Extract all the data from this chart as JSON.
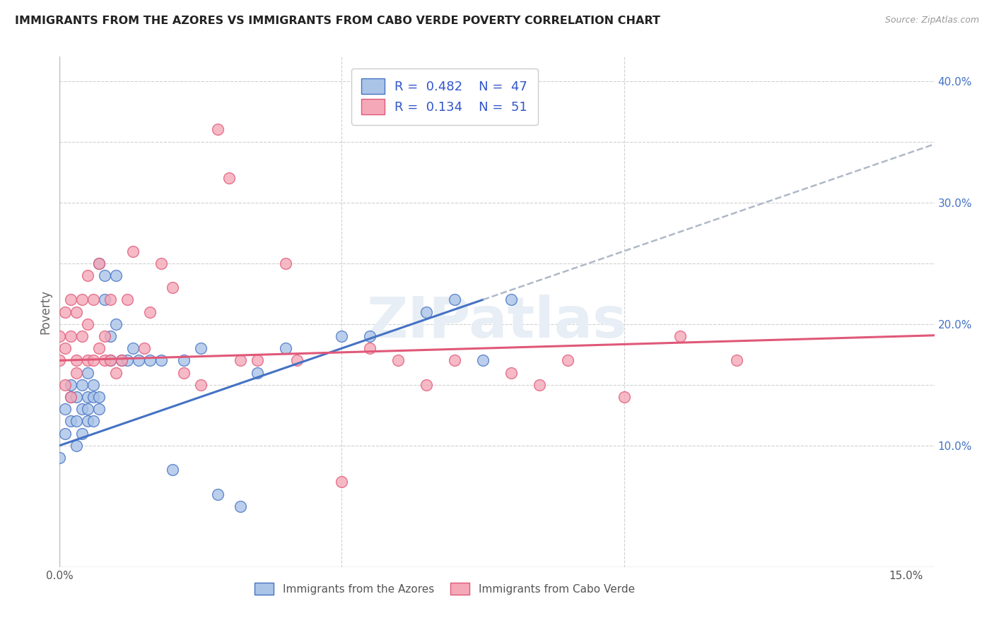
{
  "title": "IMMIGRANTS FROM THE AZORES VS IMMIGRANTS FROM CABO VERDE POVERTY CORRELATION CHART",
  "source": "Source: ZipAtlas.com",
  "ylabel": "Poverty",
  "xlim": [
    0.0,
    0.155
  ],
  "ylim": [
    0.0,
    0.42
  ],
  "legend_R_azores": "0.482",
  "legend_N_azores": "47",
  "legend_R_cabo": "0.134",
  "legend_N_cabo": "51",
  "color_azores": "#aac4e8",
  "color_cabo": "#f4a8b8",
  "line_color_azores": "#4472c4",
  "line_color_cabo": "#e05878",
  "line_dashed_color": "#b0b8c8",
  "watermark": "ZIPatlas",
  "background_color": "#ffffff",
  "grid_color": "#d0d0d0",
  "azores_x": [
    0.0,
    0.001,
    0.001,
    0.002,
    0.002,
    0.002,
    0.003,
    0.003,
    0.003,
    0.004,
    0.004,
    0.004,
    0.005,
    0.005,
    0.005,
    0.005,
    0.006,
    0.006,
    0.006,
    0.007,
    0.007,
    0.007,
    0.008,
    0.008,
    0.009,
    0.009,
    0.01,
    0.01,
    0.011,
    0.012,
    0.013,
    0.014,
    0.016,
    0.018,
    0.02,
    0.022,
    0.025,
    0.028,
    0.032,
    0.035,
    0.04,
    0.05,
    0.055,
    0.065,
    0.07,
    0.075,
    0.08
  ],
  "azores_y": [
    0.09,
    0.13,
    0.11,
    0.14,
    0.12,
    0.15,
    0.14,
    0.12,
    0.1,
    0.15,
    0.13,
    0.11,
    0.16,
    0.14,
    0.13,
    0.12,
    0.15,
    0.14,
    0.12,
    0.14,
    0.13,
    0.25,
    0.22,
    0.24,
    0.19,
    0.17,
    0.24,
    0.2,
    0.17,
    0.17,
    0.18,
    0.17,
    0.17,
    0.17,
    0.08,
    0.17,
    0.18,
    0.06,
    0.05,
    0.16,
    0.18,
    0.19,
    0.19,
    0.21,
    0.22,
    0.17,
    0.22
  ],
  "cabo_x": [
    0.0,
    0.0,
    0.001,
    0.001,
    0.001,
    0.002,
    0.002,
    0.002,
    0.003,
    0.003,
    0.003,
    0.004,
    0.004,
    0.005,
    0.005,
    0.005,
    0.006,
    0.006,
    0.007,
    0.007,
    0.008,
    0.008,
    0.009,
    0.009,
    0.01,
    0.011,
    0.012,
    0.013,
    0.015,
    0.016,
    0.018,
    0.02,
    0.022,
    0.025,
    0.028,
    0.03,
    0.032,
    0.035,
    0.04,
    0.042,
    0.05,
    0.055,
    0.06,
    0.065,
    0.07,
    0.08,
    0.085,
    0.09,
    0.1,
    0.11,
    0.12
  ],
  "cabo_y": [
    0.17,
    0.19,
    0.15,
    0.18,
    0.21,
    0.14,
    0.19,
    0.22,
    0.16,
    0.21,
    0.17,
    0.19,
    0.22,
    0.24,
    0.2,
    0.17,
    0.22,
    0.17,
    0.18,
    0.25,
    0.19,
    0.17,
    0.22,
    0.17,
    0.16,
    0.17,
    0.22,
    0.26,
    0.18,
    0.21,
    0.25,
    0.23,
    0.16,
    0.15,
    0.36,
    0.32,
    0.17,
    0.17,
    0.25,
    0.17,
    0.07,
    0.18,
    0.17,
    0.15,
    0.17,
    0.16,
    0.15,
    0.17,
    0.14,
    0.19,
    0.17
  ]
}
